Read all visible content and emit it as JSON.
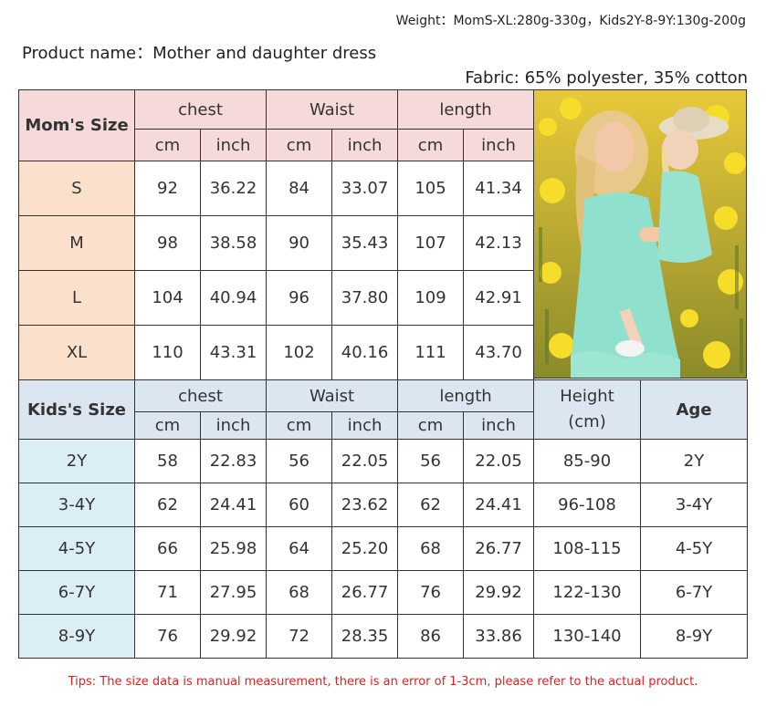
{
  "weight": "Weight：MomS-XL:280g-330g，Kids2Y-8-9Y:130g-200g",
  "product": "Product name：Mother and daughter dress",
  "fabric": "Fabric: 65% polyester, 35% cotton",
  "mom_table": {
    "size_header": "Mom's Size",
    "groups": [
      "chest",
      "Waist",
      "length"
    ],
    "units": [
      "cm",
      "inch",
      "cm",
      "inch",
      "cm",
      "inch"
    ],
    "rows": [
      {
        "size": "S",
        "values": [
          "92",
          "36.22",
          "84",
          "33.07",
          "105",
          "41.34"
        ]
      },
      {
        "size": "M",
        "values": [
          "98",
          "38.58",
          "90",
          "35.43",
          "107",
          "42.13"
        ]
      },
      {
        "size": "L",
        "values": [
          "104",
          "40.94",
          "96",
          "37.80",
          "109",
          "42.91"
        ]
      },
      {
        "size": "XL",
        "values": [
          "110",
          "43.31",
          "102",
          "40.16",
          "111",
          "43.70"
        ]
      }
    ]
  },
  "kids_table": {
    "size_header": "Kids's Size",
    "groups": [
      "chest",
      "Waist",
      "length"
    ],
    "height_header": "Height\n(cm)",
    "age_header": "Age",
    "units": [
      "cm",
      "inch",
      "cm",
      "inch",
      "cm",
      "inch"
    ],
    "rows": [
      {
        "size": "2Y",
        "values": [
          "58",
          "22.83",
          "56",
          "22.05",
          "56",
          "22.05"
        ],
        "height": "85-90",
        "age": "2Y"
      },
      {
        "size": "3-4Y",
        "values": [
          "62",
          "24.41",
          "60",
          "23.62",
          "62",
          "24.41"
        ],
        "height": "96-108",
        "age": "3-4Y"
      },
      {
        "size": "4-5Y",
        "values": [
          "66",
          "25.98",
          "64",
          "25.20",
          "68",
          "26.77"
        ],
        "height": "108-115",
        "age": "4-5Y"
      },
      {
        "size": "6-7Y",
        "values": [
          "71",
          "27.95",
          "68",
          "26.77",
          "76",
          "29.92"
        ],
        "height": "122-130",
        "age": "6-7Y"
      },
      {
        "size": "8-9Y",
        "values": [
          "76",
          "29.92",
          "72",
          "28.35",
          "86",
          "33.86"
        ],
        "height": "130-140",
        "age": "8-9Y"
      }
    ]
  },
  "tips": "Tips: The size data is manual measurement, there is an error of 1-3cm, please refer to the actual product."
}
